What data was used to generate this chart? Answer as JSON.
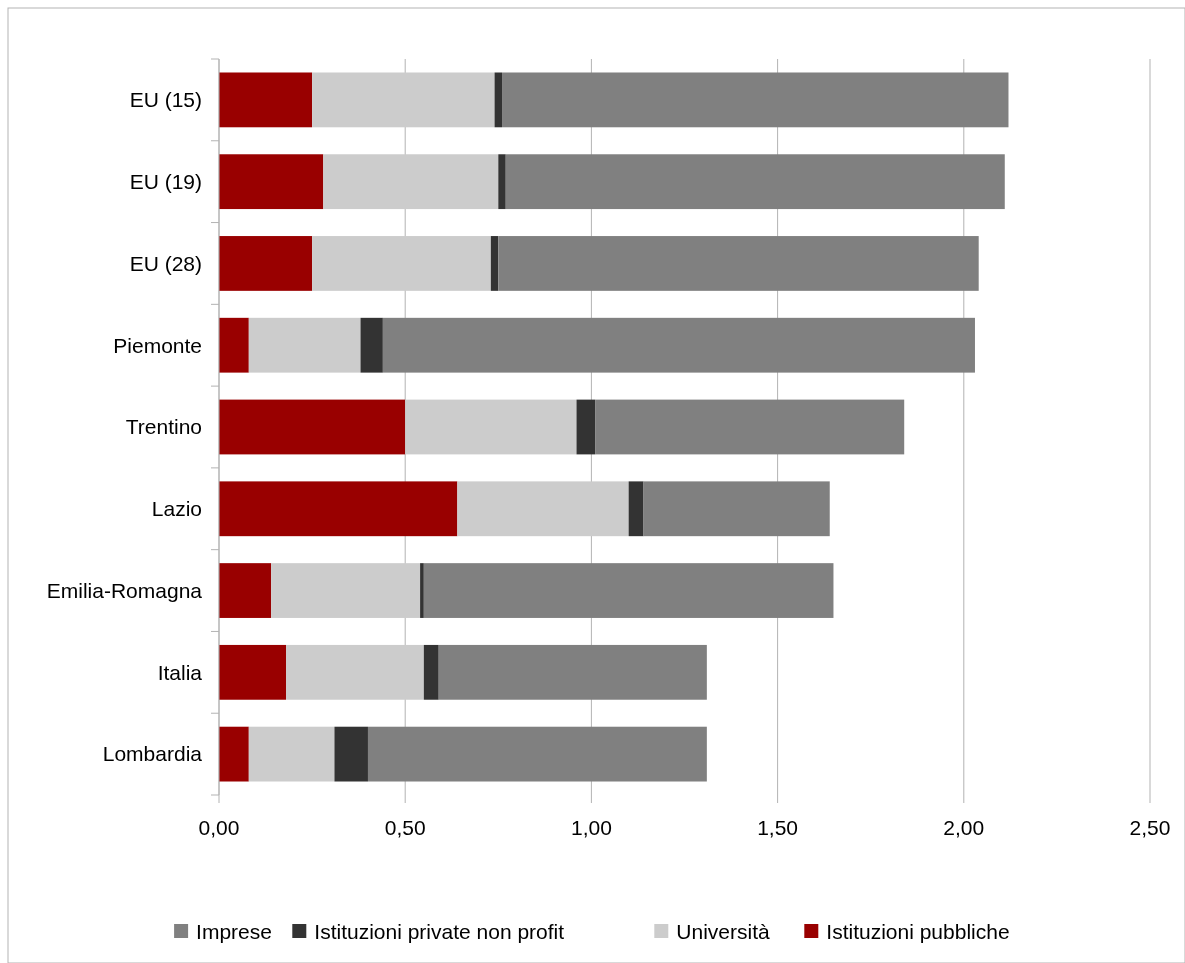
{
  "chart_data": {
    "type": "bar",
    "orientation": "horizontal",
    "stacked": true,
    "categories": [
      "EU (15)",
      "EU (19)",
      "EU (28)",
      "Piemonte",
      "Trentino",
      "Lazio",
      "Emilia-Romagna",
      "Italia",
      "Lombardia"
    ],
    "series": [
      {
        "name": "Istituzioni pubbliche",
        "color": "#990000",
        "values": [
          0.25,
          0.28,
          0.25,
          0.08,
          0.5,
          0.64,
          0.14,
          0.18,
          0.08
        ]
      },
      {
        "name": "Università",
        "color": "#cccccc",
        "values": [
          0.49,
          0.47,
          0.48,
          0.3,
          0.46,
          0.46,
          0.4,
          0.37,
          0.23
        ]
      },
      {
        "name": "Istituzioni private non profit",
        "color": "#333333",
        "values": [
          0.02,
          0.02,
          0.02,
          0.06,
          0.05,
          0.04,
          0.01,
          0.04,
          0.09
        ]
      },
      {
        "name": "Imprese",
        "color": "#808080",
        "values": [
          1.36,
          1.34,
          1.29,
          1.59,
          0.83,
          0.5,
          1.1,
          0.72,
          0.91
        ]
      }
    ],
    "xlim": [
      0,
      2.5
    ],
    "xticks": [
      {
        "value": 0,
        "label": "0,00"
      },
      {
        "value": 0.5,
        "label": "0,50"
      },
      {
        "value": 1,
        "label": "1,00"
      },
      {
        "value": 1.5,
        "label": "1,50"
      },
      {
        "value": 2,
        "label": "2,00"
      },
      {
        "value": 2.5,
        "label": "2,50"
      }
    ],
    "grid": "x",
    "legend": "bottom"
  }
}
